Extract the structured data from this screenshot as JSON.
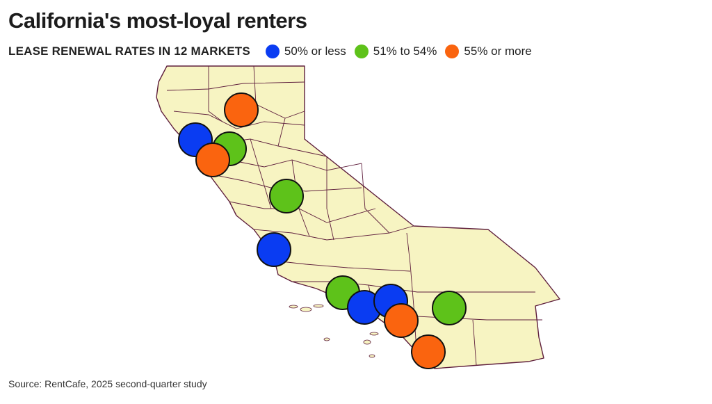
{
  "title": "California's most-loyal renters",
  "subtitle": "LEASE RENEWAL RATES IN 12 MARKETS",
  "legend": [
    {
      "label": "50% or less",
      "color": "#0a3cf2"
    },
    {
      "label": "51% to 54%",
      "color": "#5ec21a"
    },
    {
      "label": "55% or more",
      "color": "#fa640f"
    }
  ],
  "source": "Source: RentCafe, 2025 second-quarter study",
  "colors": {
    "land": "#f7f4c2",
    "border": "#5e1e3c",
    "marker_outline": "#111111"
  },
  "markets": [
    {
      "category": 2
    },
    {
      "category": 0
    },
    {
      "category": 1
    },
    {
      "category": 2
    },
    {
      "category": 1
    },
    {
      "category": 0
    },
    {
      "category": 1
    },
    {
      "category": 0
    },
    {
      "category": 0
    },
    {
      "category": 2
    },
    {
      "category": 1
    },
    {
      "category": 2
    }
  ]
}
